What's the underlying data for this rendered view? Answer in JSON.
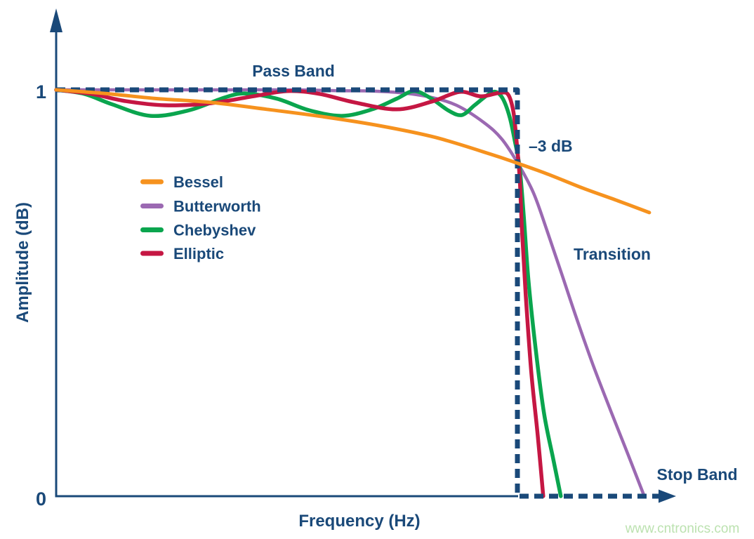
{
  "colors": {
    "navy": "#1A4979",
    "bessel": "#F6921E",
    "butterworth": "#9B69B2",
    "chebyshev": "#0AA54E",
    "elliptic": "#C51743",
    "background": "#FFFFFF"
  },
  "watermark": {
    "text": "www.cntronics.com",
    "color": "#BCE2B0"
  },
  "chart_data": {
    "type": "line",
    "xlabel": "Frequency (Hz)",
    "ylabel": "Amplitude (dB)",
    "grid": false,
    "legend_position": "inside-upper-left",
    "x_axis": {
      "unit": "normalized to cutoff frequency (cutoff = 1.0)",
      "range": [
        0,
        1.34
      ],
      "ticks": []
    },
    "y_axis": {
      "range": [
        0,
        1.18
      ],
      "ticks": [
        {
          "label": "1",
          "value": 1
        },
        {
          "label": "0",
          "value": 0
        }
      ]
    },
    "cutoff_crossing": {
      "x": 1.0,
      "amplitude": 0.82,
      "label": "–3 dB"
    },
    "series": [
      {
        "name": "Bessel",
        "color": "#F6921E",
        "width": 5,
        "z": 5,
        "style": "solid",
        "points": [
          [
            0,
            1
          ],
          [
            0.107,
            0.991
          ],
          [
            0.213,
            0.979
          ],
          [
            0.335,
            0.969
          ],
          [
            0.457,
            0.952
          ],
          [
            0.578,
            0.934
          ],
          [
            0.7,
            0.912
          ],
          [
            0.822,
            0.883
          ],
          [
            0.944,
            0.841
          ],
          [
            1.001,
            0.819
          ],
          [
            1.065,
            0.793
          ],
          [
            1.142,
            0.758
          ],
          [
            1.218,
            0.727
          ],
          [
            1.286,
            0.698
          ]
        ]
      },
      {
        "name": "Butterworth",
        "color": "#9B69B2",
        "width": 4.5,
        "z": 1,
        "style": "solid",
        "points": [
          [
            0,
            1
          ],
          [
            0.183,
            1
          ],
          [
            0.365,
            1
          ],
          [
            0.517,
            1
          ],
          [
            0.609,
            0.998
          ],
          [
            0.685,
            0.997
          ],
          [
            0.746,
            0.993
          ],
          [
            0.807,
            0.983
          ],
          [
            0.868,
            0.962
          ],
          [
            0.928,
            0.919
          ],
          [
            0.966,
            0.879
          ],
          [
            1.001,
            0.819
          ],
          [
            1.035,
            0.746
          ],
          [
            1.065,
            0.651
          ],
          [
            1.096,
            0.547
          ],
          [
            1.129,
            0.435
          ],
          [
            1.164,
            0.323
          ],
          [
            1.202,
            0.211
          ],
          [
            1.24,
            0.102
          ],
          [
            1.275,
            0
          ]
        ]
      },
      {
        "name": "Chebyshev",
        "color": "#0AA54E",
        "width": 5.5,
        "z": 2,
        "style": "solid",
        "points": [
          [
            0,
            1
          ],
          [
            0.061,
            0.99
          ],
          [
            0.122,
            0.964
          ],
          [
            0.205,
            0.936
          ],
          [
            0.289,
            0.95
          ],
          [
            0.365,
            0.981
          ],
          [
            0.411,
            0.991
          ],
          [
            0.479,
            0.978
          ],
          [
            0.548,
            0.95
          ],
          [
            0.619,
            0.936
          ],
          [
            0.685,
            0.952
          ],
          [
            0.738,
            0.978
          ],
          [
            0.776,
            0.997
          ],
          [
            0.814,
            0.978
          ],
          [
            0.852,
            0.948
          ],
          [
            0.88,
            0.938
          ],
          [
            0.907,
            0.962
          ],
          [
            0.936,
            0.988
          ],
          [
            0.953,
            0.995
          ],
          [
            0.968,
            0.979
          ],
          [
            0.983,
            0.934
          ],
          [
            0.994,
            0.876
          ],
          [
            1.005,
            0.807
          ],
          [
            1.014,
            0.686
          ],
          [
            1.024,
            0.53
          ],
          [
            1.04,
            0.358
          ],
          [
            1.058,
            0.202
          ],
          [
            1.078,
            0.09
          ],
          [
            1.094,
            0
          ]
        ]
      },
      {
        "name": "Elliptic",
        "color": "#C51743",
        "width": 5.5,
        "z": 3,
        "style": "solid",
        "points": [
          [
            0,
            1
          ],
          [
            0.076,
            0.99
          ],
          [
            0.152,
            0.972
          ],
          [
            0.236,
            0.962
          ],
          [
            0.335,
            0.967
          ],
          [
            0.426,
            0.984
          ],
          [
            0.502,
            0.997
          ],
          [
            0.571,
            0.99
          ],
          [
            0.647,
            0.969
          ],
          [
            0.738,
            0.952
          ],
          [
            0.814,
            0.971
          ],
          [
            0.875,
            0.995
          ],
          [
            0.921,
            0.984
          ],
          [
            0.962,
            0.993
          ],
          [
            0.98,
            0.988
          ],
          [
            0.991,
            0.948
          ],
          [
            0.998,
            0.876
          ],
          [
            1.005,
            0.781
          ],
          [
            1.01,
            0.651
          ],
          [
            1.018,
            0.496
          ],
          [
            1.03,
            0.306
          ],
          [
            1.044,
            0.15
          ],
          [
            1.056,
            0
          ]
        ]
      },
      {
        "name": "Ideal brick-wall response",
        "color": "#1A4979",
        "width": 7,
        "z": 4,
        "style": "dashed",
        "dash": [
          13,
          8
        ],
        "smooth": false,
        "points": [
          [
            0,
            1
          ],
          [
            1,
            1
          ],
          [
            1,
            0
          ],
          [
            1.306,
            0
          ]
        ]
      }
    ],
    "annotations": [
      {
        "text": "Pass Band",
        "x": 0.51,
        "y": 1.05
      },
      {
        "text": "–3 dB",
        "x": 1.07,
        "y": 0.86
      },
      {
        "text": "Transition",
        "x": 1.21,
        "y": 0.6
      },
      {
        "text": "Stop Band",
        "x": 1.39,
        "y": 0.05
      }
    ]
  }
}
